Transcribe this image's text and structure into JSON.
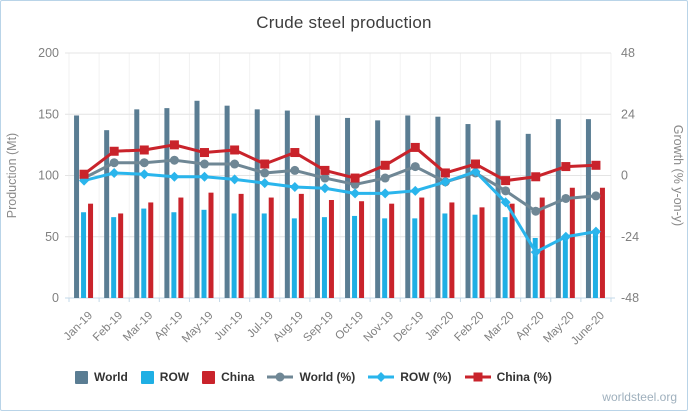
{
  "widget": {
    "title": "Crude steel production",
    "credit": "worldsteel.org"
  },
  "colors": {
    "world_bar": "#5a7d93",
    "row_bar": "#1fafe4",
    "china_bar": "#c9232b",
    "world_line": "#6f8795",
    "row_line": "#2ab5ec",
    "china_line": "#c9232b",
    "grid": "#e4e4e4",
    "grid_vertical": "#f2f2f2",
    "axis_line": "#c3d8e8",
    "tick_label": "#808080",
    "axis_title": "#8a8a8a"
  },
  "chart_data": {
    "type": "bar",
    "title": "Crude steel production",
    "categories": [
      "Jan-19",
      "Feb-19",
      "Mar-19",
      "Apr-19",
      "May-19",
      "Jun-19",
      "Jul-19",
      "Aug-19",
      "Sep-19",
      "Oct-19",
      "Nov-19",
      "Dec-19",
      "Jan-20",
      "Feb-20",
      "Mar-20",
      "Apr-20",
      "May-20",
      "June-20"
    ],
    "bar_series": [
      {
        "name": "World",
        "color": "#5a7d93",
        "axis": "left",
        "values": [
          149,
          137,
          154,
          155,
          161,
          157,
          154,
          153,
          149,
          147,
          145,
          149,
          148,
          142,
          145,
          134,
          146,
          146
        ]
      },
      {
        "name": "ROW",
        "color": "#1fafe4",
        "axis": "left",
        "values": [
          70,
          66,
          73,
          70,
          72,
          69,
          69,
          65,
          66,
          67,
          65,
          65,
          69,
          68,
          66,
          49,
          51,
          55
        ]
      },
      {
        "name": "China",
        "color": "#c9232b",
        "axis": "left",
        "values": [
          77,
          69,
          78,
          82,
          86,
          85,
          82,
          85,
          80,
          79,
          77,
          82,
          78,
          74,
          77,
          82,
          90,
          90
        ]
      }
    ],
    "line_series": [
      {
        "name": "World (%)",
        "color": "#6f8795",
        "marker": "circle",
        "axis": "right",
        "values": [
          -1,
          5,
          5,
          6,
          4.5,
          4.5,
          1,
          2,
          -1,
          -3.5,
          -1,
          3.5,
          -2.5,
          1,
          -6,
          -14,
          -9,
          -8
        ]
      },
      {
        "name": "ROW (%)",
        "color": "#2ab5ec",
        "marker": "diamond",
        "axis": "right",
        "values": [
          -2,
          1,
          0.5,
          -0.5,
          -0.5,
          -1.5,
          -3,
          -4.5,
          -5,
          -7,
          -7,
          -6,
          -2.5,
          1.5,
          -10.5,
          -30,
          -24,
          -22
        ]
      },
      {
        "name": "China (%)",
        "color": "#c9232b",
        "marker": "square",
        "axis": "right",
        "values": [
          0.5,
          9.5,
          10,
          12,
          9,
          10,
          4.5,
          9,
          2,
          -1,
          4,
          11,
          1,
          4.5,
          -2,
          -0.5,
          3.5,
          4
        ]
      }
    ],
    "axes": {
      "left": {
        "label": "Production (Mt)",
        "min": 0,
        "max": 200,
        "ticks": [
          0,
          50,
          100,
          150,
          200
        ]
      },
      "right": {
        "label": "Growth (% y-on-y)",
        "min": -48,
        "max": 48,
        "ticks": [
          48,
          24,
          0,
          -24,
          -48
        ]
      }
    },
    "legend_position": "bottom",
    "grid": true
  }
}
